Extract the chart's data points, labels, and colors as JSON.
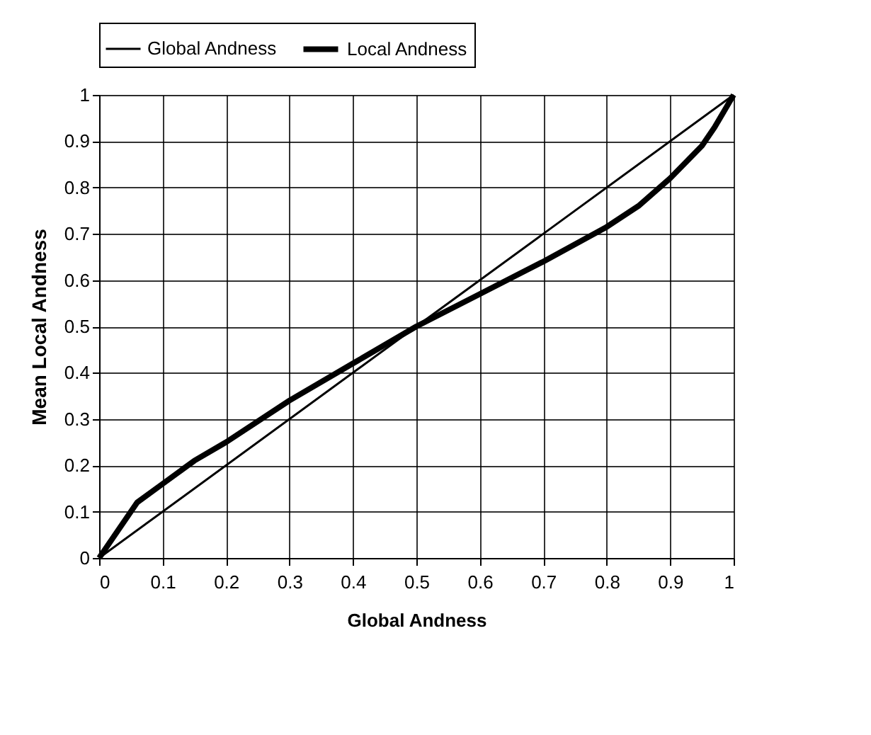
{
  "chart_data": {
    "type": "line",
    "xlabel": "Global Andness",
    "ylabel": "Mean Local Andness",
    "xlim": [
      0,
      1
    ],
    "ylim": [
      0,
      1
    ],
    "xticks": [
      0,
      0.1,
      0.2,
      0.3,
      0.4,
      0.5,
      0.6,
      0.7,
      0.8,
      0.9,
      1
    ],
    "yticks": [
      0,
      0.1,
      0.2,
      0.3,
      0.4,
      0.5,
      0.6,
      0.7,
      0.8,
      0.9,
      1
    ],
    "grid": true,
    "legend": "top",
    "marker": "none",
    "line_style": "solid",
    "series": [
      {
        "name": "Global Andness",
        "color": "#000000",
        "x": [
          0,
          0.5,
          1
        ],
        "values": [
          0,
          0.5,
          1
        ]
      },
      {
        "name": "Local Andness",
        "color": "#000000",
        "x": [
          0,
          0.06,
          0.1,
          0.15,
          0.2,
          0.3,
          0.4,
          0.5,
          0.6,
          0.7,
          0.8,
          0.85,
          0.9,
          0.95,
          0.97,
          1
        ],
        "values": [
          0,
          0.12,
          0.16,
          0.21,
          0.25,
          0.34,
          0.42,
          0.5,
          0.57,
          0.64,
          0.715,
          0.76,
          0.82,
          0.89,
          0.93,
          1
        ]
      }
    ]
  }
}
